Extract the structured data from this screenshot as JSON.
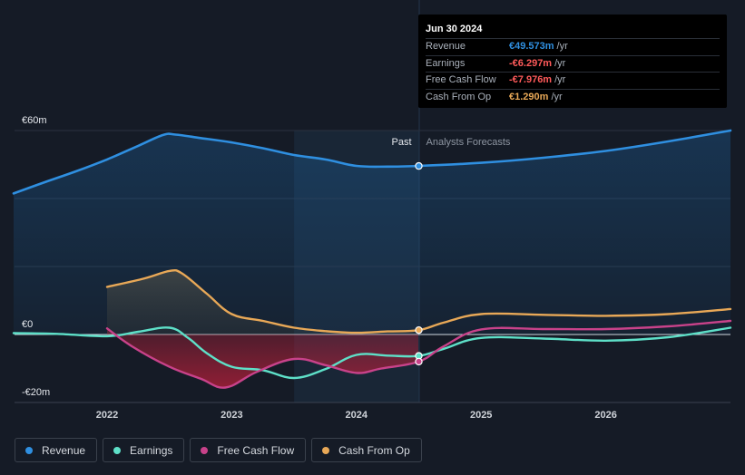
{
  "colors": {
    "revenue": "#2f8fe0",
    "earnings": "#5ee0c8",
    "free_cash_flow": "#c8428a",
    "cash_from_op": "#e8a857",
    "background": "#151b26",
    "negative": "#ff5a5a"
  },
  "tooltip": {
    "date": "Jun 30 2024",
    "rows": [
      {
        "label": "Revenue",
        "value": "€49.573m",
        "unit": "/yr",
        "color": "#2f8fe0"
      },
      {
        "label": "Earnings",
        "value": "-€6.297m",
        "unit": "/yr",
        "color": "#ff5a5a"
      },
      {
        "label": "Free Cash Flow",
        "value": "-€7.976m",
        "unit": "/yr",
        "color": "#ff5a5a"
      },
      {
        "label": "Cash From Op",
        "value": "€1.290m",
        "unit": "/yr",
        "color": "#e8a857"
      }
    ]
  },
  "legend": [
    {
      "name": "Revenue",
      "color": "#2f8fe0"
    },
    {
      "name": "Earnings",
      "color": "#5ee0c8"
    },
    {
      "name": "Free Cash Flow",
      "color": "#c8428a"
    },
    {
      "name": "Cash From Op",
      "color": "#e8a857"
    }
  ],
  "chart_data": {
    "type": "line",
    "title": "",
    "xlabel": "",
    "ylabel": "",
    "ylim": [
      -20,
      60
    ],
    "xlim": [
      2021.25,
      2027.0
    ],
    "grid": true,
    "y_ticks": [
      {
        "value": 60,
        "label": "€60m"
      },
      {
        "value": 0,
        "label": "€0"
      },
      {
        "value": -20,
        "label": "-€20m"
      }
    ],
    "x_ticks": [
      {
        "value": 2022,
        "label": "2022"
      },
      {
        "value": 2023,
        "label": "2023"
      },
      {
        "value": 2024,
        "label": "2024"
      },
      {
        "value": 2025,
        "label": "2025"
      },
      {
        "value": 2026,
        "label": "2026"
      }
    ],
    "divider": {
      "x": 2024.5,
      "past_label": "Past",
      "forecast_label": "Analysts Forecasts"
    },
    "highlight_start": 2023.5,
    "series": [
      {
        "name": "Revenue",
        "key": "revenue",
        "x": [
          2021.25,
          2021.5,
          2021.75,
          2022.0,
          2022.25,
          2022.45,
          2022.55,
          2022.75,
          2023.0,
          2023.25,
          2023.5,
          2023.75,
          2024.0,
          2024.25,
          2024.5,
          2025.0,
          2025.5,
          2026.0,
          2026.5,
          2027.0
        ],
        "y": [
          41.5,
          44.8,
          48.0,
          51.5,
          55.5,
          58.7,
          58.8,
          57.8,
          56.5,
          54.8,
          52.8,
          51.5,
          49.6,
          49.4,
          49.6,
          50.5,
          52.0,
          54.0,
          56.8,
          60.0
        ]
      },
      {
        "name": "Earnings",
        "key": "earnings",
        "x": [
          2021.25,
          2021.6,
          2022.0,
          2022.25,
          2022.5,
          2022.65,
          2022.8,
          2023.0,
          2023.25,
          2023.5,
          2023.75,
          2024.0,
          2024.25,
          2024.5,
          2024.7,
          2025.0,
          2025.5,
          2026.0,
          2026.5,
          2027.0
        ],
        "y": [
          0.4,
          0.2,
          -0.5,
          0.8,
          2.0,
          -1.0,
          -5.5,
          -9.5,
          -10.5,
          -12.8,
          -10.2,
          -6.0,
          -6.2,
          -6.3,
          -4.2,
          -1.0,
          -1.2,
          -1.8,
          -0.8,
          2.0
        ]
      },
      {
        "name": "Free Cash Flow",
        "key": "free_cash_flow",
        "x": [
          2022.0,
          2022.2,
          2022.5,
          2022.75,
          2022.95,
          2023.2,
          2023.5,
          2023.75,
          2024.0,
          2024.2,
          2024.5,
          2024.7,
          2025.0,
          2025.5,
          2026.0,
          2026.5,
          2027.0
        ],
        "y": [
          1.8,
          -3.5,
          -9.5,
          -13.0,
          -15.6,
          -11.0,
          -7.2,
          -9.0,
          -11.3,
          -10.0,
          -7.98,
          -3.5,
          1.5,
          1.6,
          1.6,
          2.4,
          4.0
        ]
      },
      {
        "name": "Cash From Op",
        "key": "cash_from_op",
        "x": [
          2022.0,
          2022.3,
          2022.5,
          2022.6,
          2022.8,
          2023.0,
          2023.25,
          2023.5,
          2023.75,
          2024.0,
          2024.25,
          2024.5,
          2024.7,
          2025.0,
          2025.5,
          2026.0,
          2026.5,
          2027.0
        ],
        "y": [
          14.0,
          16.5,
          18.7,
          18.0,
          12.0,
          6.0,
          4.0,
          2.0,
          1.0,
          0.5,
          0.9,
          1.29,
          3.5,
          6.0,
          5.8,
          5.5,
          6.0,
          7.5
        ]
      }
    ],
    "markers": [
      {
        "series": "revenue",
        "x": 2024.5,
        "y": 49.573
      },
      {
        "series": "earnings",
        "x": 2024.5,
        "y": -6.297
      },
      {
        "series": "free_cash_flow",
        "x": 2024.5,
        "y": -7.976
      },
      {
        "series": "cash_from_op",
        "x": 2024.5,
        "y": 1.29
      }
    ]
  }
}
